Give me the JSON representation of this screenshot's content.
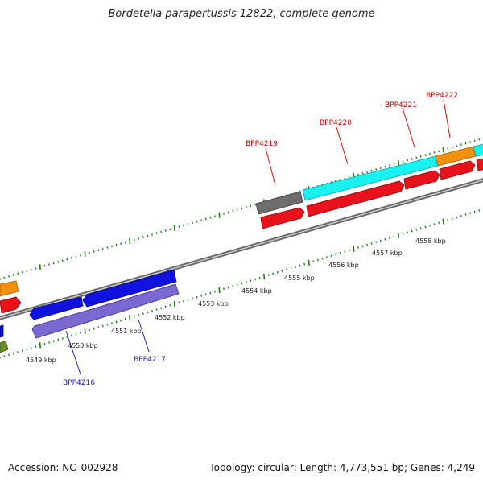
{
  "title": "Bordetella parapertussis 12822, complete genome",
  "footer": {
    "accession": "Accession: NC_002928",
    "summary": "Topology: circular; Length: 4,773,551 bp; Genes: 4,249"
  },
  "colors": {
    "backbone": "#8c8c8c",
    "tick": "#1a7a1a",
    "forward_gene": "#e8121a",
    "reverse_gene": "#1212e0",
    "highlight_cyan": "#19f0f0",
    "highlight_orange": "#f0900f",
    "gray_gene": "#6e6e6e",
    "lavender_gene": "#7b68d0",
    "olive_gene": "#6a8c2a",
    "forward_label": "#cc0000",
    "reverse_label": "#1a1aa6"
  },
  "scale_labels": [
    "4549 kbp",
    "4550 kbp",
    "4551 kbp",
    "4552 kbp",
    "4553 kbp",
    "4554 kbp",
    "4555 kbp",
    "4556 kbp",
    "4557 kbp",
    "4558 kbp"
  ],
  "gene_labels": {
    "forward": [
      "BPP4219",
      "BPP4220",
      "BPP4221",
      "BPP4222"
    ],
    "reverse": [
      "BPP4216",
      "BPP4217"
    ]
  }
}
